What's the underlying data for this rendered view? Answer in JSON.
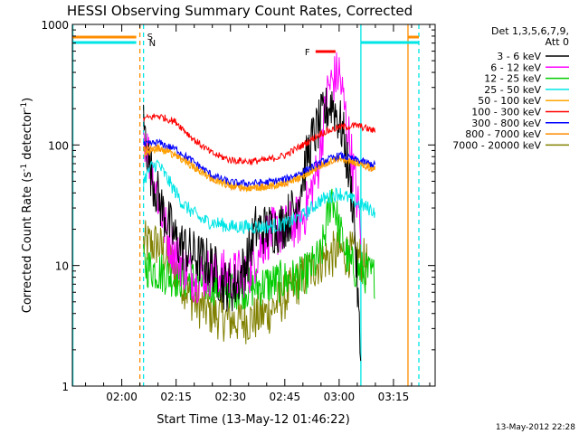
{
  "chart_data": {
    "type": "line",
    "title": "HESSI Observing Summary Count Rates, Corrected",
    "xlabel": "Start Time (13-May-12 01:46:22)",
    "ylabel": "Corrected Count Rate (s",
    "ylabel_sup1": "-1",
    "ylabel_mid": " detector",
    "ylabel_sup2": "-1",
    "ylabel_end": ")",
    "yscale": "log",
    "ylim": [
      1,
      1000
    ],
    "xlim": [
      "01:46:22",
      "03:26:30"
    ],
    "x_ticks": [
      "02:00",
      "02:15",
      "02:30",
      "02:45",
      "03:00",
      "03:15"
    ],
    "y_ticks": [
      "1",
      "10",
      "100",
      "1000"
    ],
    "footer_date": "13-May-2012 22:28",
    "legend": {
      "title": "Det 1,3,5,6,7,9,",
      "subtitle": "Att 0",
      "position": "right"
    },
    "markers": {
      "S_label": "S",
      "N_label": "N",
      "F_label": "F",
      "F_range": [
        "02:53",
        "02:59"
      ]
    },
    "vertical_lines": [
      {
        "time": "01:46:30",
        "color": "#00e5e5",
        "style": "solid"
      },
      {
        "time": "02:06:00",
        "color": "#00e5e5",
        "style": "dashed"
      },
      {
        "time": "02:05:00",
        "color": "#ff8c00",
        "style": "dashed"
      },
      {
        "time": "03:06:00",
        "color": "#00e5e5",
        "style": "solid"
      },
      {
        "time": "03:19:00",
        "color": "#ff8c00",
        "style": "solid"
      },
      {
        "time": "03:22:00",
        "color": "#00e5e5",
        "style": "dashed"
      }
    ],
    "series": [
      {
        "name": "3 - 6 keV",
        "color": "#000000",
        "x": [
          "02:06",
          "02:08",
          "02:11",
          "02:15",
          "02:20",
          "02:25",
          "02:28",
          "02:31",
          "02:34",
          "02:37",
          "02:40",
          "02:44",
          "02:48",
          "02:52",
          "02:55",
          "02:58",
          "03:01",
          "03:04",
          "03:06"
        ],
        "y": [
          150,
          60,
          30,
          16,
          12,
          10,
          7,
          6.5,
          10,
          20,
          20,
          21,
          30,
          100,
          160,
          230,
          130,
          30,
          1.5
        ]
      },
      {
        "name": "6 - 12 keV",
        "color": "#ff00ff",
        "x": [
          "02:06",
          "02:09",
          "02:12",
          "02:15",
          "02:20",
          "02:25",
          "02:30",
          "02:35",
          "02:40",
          "02:45",
          "02:50",
          "02:54",
          "02:57",
          "03:00",
          "03:03",
          "03:06"
        ],
        "y": [
          130,
          50,
          20,
          12,
          8,
          9,
          8,
          9,
          18,
          20,
          25,
          60,
          300,
          400,
          100,
          20
        ]
      },
      {
        "name": "12 - 25 keV",
        "color": "#00cc00",
        "x": [
          "02:06",
          "02:10",
          "02:15",
          "02:20",
          "02:25",
          "02:30",
          "02:35",
          "02:40",
          "02:45",
          "02:50",
          "02:55",
          "02:58",
          "03:00",
          "03:03",
          "03:06",
          "03:10"
        ],
        "y": [
          10,
          9,
          8,
          7.5,
          7,
          6.5,
          6.5,
          7,
          7.5,
          8,
          12,
          40,
          20,
          10,
          9,
          8
        ]
      },
      {
        "name": "25 - 50 keV",
        "color": "#00e5e5",
        "x": [
          "02:06",
          "02:08",
          "02:10",
          "02:13",
          "02:17",
          "02:22",
          "02:30",
          "02:40",
          "02:45",
          "02:50",
          "02:55",
          "03:00",
          "03:05",
          "03:10"
        ],
        "y": [
          50,
          65,
          70,
          50,
          32,
          24,
          21,
          21,
          22,
          26,
          35,
          40,
          33,
          28
        ]
      },
      {
        "name": "50 - 100 keV",
        "color": "#ffa500",
        "x": [
          "02:06",
          "02:10",
          "02:15",
          "02:20",
          "02:25",
          "02:30",
          "02:35",
          "02:40",
          "02:45",
          "02:50",
          "02:55",
          "03:00",
          "03:05",
          "03:10"
        ],
        "y": [
          85,
          92,
          82,
          65,
          52,
          46,
          44,
          45,
          48,
          55,
          68,
          78,
          70,
          65
        ]
      },
      {
        "name": "100 - 300 keV",
        "color": "#ff0000",
        "x": [
          "02:06",
          "02:10",
          "02:15",
          "02:20",
          "02:25",
          "02:30",
          "02:35",
          "02:40",
          "02:45",
          "02:50",
          "02:55",
          "03:00",
          "03:05",
          "03:10"
        ],
        "y": [
          165,
          175,
          155,
          110,
          85,
          75,
          73,
          75,
          82,
          100,
          125,
          140,
          145,
          130
        ]
      },
      {
        "name": "300 - 800 keV",
        "color": "#0000ff",
        "x": [
          "02:06",
          "02:10",
          "02:15",
          "02:20",
          "02:25",
          "02:30",
          "02:35",
          "02:40",
          "02:45",
          "02:50",
          "02:55",
          "03:00",
          "03:05",
          "03:10"
        ],
        "y": [
          100,
          105,
          92,
          72,
          56,
          49,
          48,
          49,
          52,
          60,
          72,
          82,
          75,
          68
        ]
      },
      {
        "name": "800 - 7000 keV",
        "color": "#ff8c00",
        "x": [
          "02:06",
          "02:10",
          "02:15",
          "02:20",
          "02:25",
          "02:30",
          "02:35",
          "02:40",
          "02:45",
          "02:50",
          "02:55",
          "03:00",
          "03:05",
          "03:10"
        ],
        "y": [
          92,
          95,
          85,
          65,
          52,
          45,
          44,
          45,
          48,
          55,
          68,
          78,
          70,
          62
        ]
      },
      {
        "name": "7000 - 20000 keV",
        "color": "#808000",
        "x": [
          "02:06",
          "02:10",
          "02:15",
          "02:20",
          "02:25",
          "02:30",
          "02:35",
          "02:40",
          "02:45",
          "02:50",
          "02:55",
          "03:00",
          "03:05",
          "03:08"
        ],
        "y": [
          15,
          15,
          9,
          5,
          4,
          3.5,
          3.5,
          4,
          5.5,
          8,
          11,
          13,
          12,
          10
        ]
      }
    ]
  }
}
